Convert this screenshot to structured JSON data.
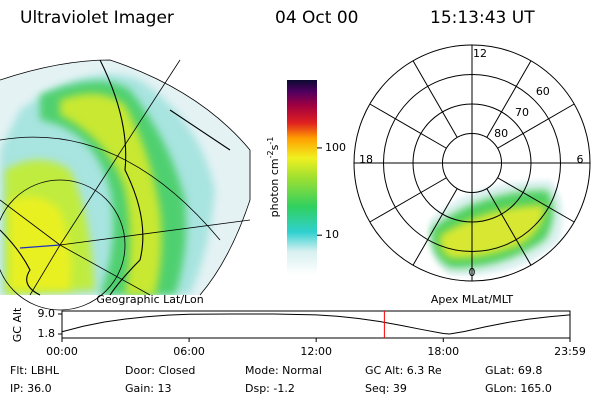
{
  "header": {
    "instrument": "Ultraviolet Imager",
    "date": "04 Oct 00",
    "time": "15:13:43 UT"
  },
  "panels": {
    "left_label": "Geographic Lat/Lon",
    "right_label": "Apex MLat/MLT"
  },
  "colorbar": {
    "label_parts": [
      "photon cm",
      "-2",
      "s",
      "-1"
    ],
    "lim": [
      3.5,
      600
    ],
    "ticks": [
      10,
      100
    ],
    "log": true
  },
  "polar": {
    "mlt_labels": [
      "12",
      "6",
      "0",
      "18"
    ],
    "lat_rings": [
      80,
      70,
      60
    ],
    "lat_lim": [
      90,
      50
    ]
  },
  "chart_data": {
    "type": "line",
    "y_label": "GC Alt",
    "x": [
      0,
      1,
      2,
      3,
      4,
      5,
      6,
      8,
      10,
      12,
      13,
      14,
      15,
      16,
      17,
      18,
      18.3,
      19,
      20,
      21,
      22,
      23,
      23.983
    ],
    "series": [
      {
        "name": "GC Alt",
        "color": "#000000",
        "values": [
          2.6,
          4.6,
          6.1,
          7.2,
          8.0,
          8.6,
          8.9,
          9.0,
          9.0,
          8.7,
          8.2,
          7.4,
          6.3,
          4.9,
          3.4,
          2.0,
          1.8,
          2.7,
          4.4,
          5.9,
          7.1,
          8.0,
          8.7
        ]
      }
    ],
    "xlim": [
      0,
      23.983
    ],
    "xticks": [
      {
        "value": 0,
        "label": "00:00"
      },
      {
        "value": 6,
        "label": "06:00"
      },
      {
        "value": 12,
        "label": "12:00"
      },
      {
        "value": 18,
        "label": "18:00"
      },
      {
        "value": 23.983,
        "label": "23:59"
      }
    ],
    "ylim": [
      1.8,
      9.0
    ],
    "yticks": [
      {
        "value": 9.0,
        "label": "9.0"
      },
      1.8
    ],
    "marker_x": 15.22,
    "marker_color": "#ff0000"
  },
  "status": {
    "rows": [
      [
        "Flt: LBHL",
        "Door: Closed",
        "Mode: Normal",
        "GC Alt: 6.3 Re",
        "GLat: 69.8"
      ],
      [
        "IP: 36.0",
        "Gain: 13",
        "Dsp:  -1.2",
        "Seq: 39",
        "GLon: 165.0"
      ]
    ]
  }
}
